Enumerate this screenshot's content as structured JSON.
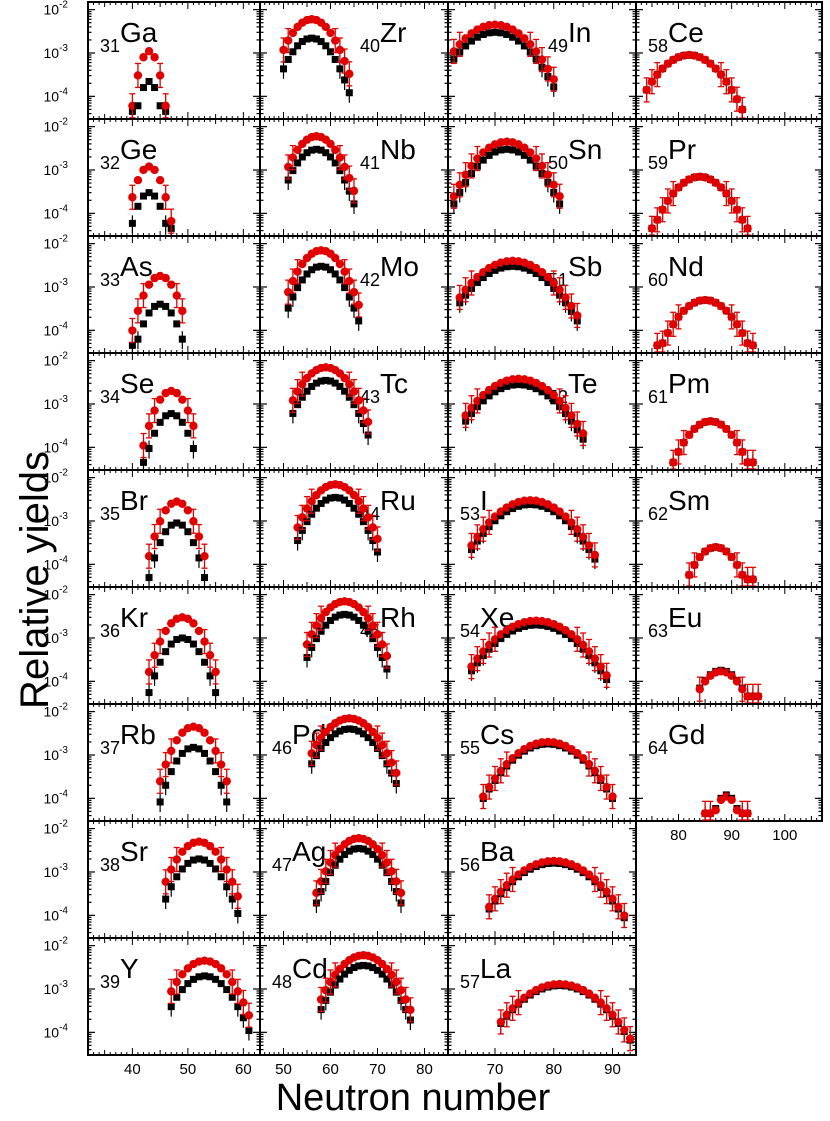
{
  "figure": {
    "xlabel": "Neutron number",
    "ylabel": "Relative yields",
    "y_ticks": [
      {
        "exp": -2,
        "base": "10",
        "power": "-2"
      },
      {
        "exp": -3,
        "base": "10",
        "power": "-3"
      },
      {
        "exp": -4,
        "base": "10",
        "power": "-4"
      }
    ]
  },
  "colors": {
    "series_a": "#000000",
    "series_b": "#e00000"
  },
  "chart_data": {
    "type": "scatter",
    "yscale": "log",
    "ylim": [
      3e-05,
      0.015
    ],
    "column_xlim": [
      [
        32,
        63
      ],
      [
        45,
        85
      ],
      [
        62,
        94
      ],
      [
        72,
        107
      ]
    ],
    "column_x_ticks": [
      [
        40,
        50,
        60
      ],
      [
        50,
        60,
        70,
        80
      ],
      [
        70,
        80,
        90
      ],
      [
        80,
        90,
        100
      ]
    ],
    "series": [
      {
        "name": "black squares"
      },
      {
        "name": "red circles with error bars"
      }
    ],
    "panels": [
      {
        "z": "31",
        "el": "Ga",
        "col": 0,
        "row": 0,
        "label_side": "left",
        "n_range": [
          40,
          46
        ],
        "peak_n": 43,
        "peak_a": 0.00022,
        "peak_b": 0.0011
      },
      {
        "z": "32",
        "el": "Ge",
        "col": 0,
        "row": 1,
        "label_side": "left",
        "n_range": [
          40,
          47
        ],
        "peak_n": 43,
        "peak_a": 0.0003,
        "peak_b": 0.0012
      },
      {
        "z": "33",
        "el": "As",
        "col": 0,
        "row": 2,
        "label_side": "left",
        "n_range": [
          40,
          49
        ],
        "peak_n": 45,
        "peak_a": 0.0004,
        "peak_b": 0.0018
      },
      {
        "z": "34",
        "el": "Se",
        "col": 0,
        "row": 3,
        "label_side": "left",
        "n_range": [
          42,
          51
        ],
        "peak_n": 47,
        "peak_a": 0.0006,
        "peak_b": 0.002
      },
      {
        "z": "35",
        "el": "Br",
        "col": 0,
        "row": 4,
        "label_side": "left",
        "n_range": [
          43,
          53
        ],
        "peak_n": 48,
        "peak_a": 0.0009,
        "peak_b": 0.0028
      },
      {
        "z": "36",
        "el": "Kr",
        "col": 0,
        "row": 5,
        "label_side": "left",
        "n_range": [
          43,
          55
        ],
        "peak_n": 49,
        "peak_a": 0.001,
        "peak_b": 0.003
      },
      {
        "z": "37",
        "el": "Rb",
        "col": 0,
        "row": 6,
        "label_side": "left",
        "n_range": [
          45,
          57
        ],
        "peak_n": 51,
        "peak_a": 0.0015,
        "peak_b": 0.0045
      },
      {
        "z": "38",
        "el": "Sr",
        "col": 0,
        "row": 7,
        "label_side": "left",
        "n_range": [
          46,
          59
        ],
        "peak_n": 52,
        "peak_a": 0.002,
        "peak_b": 0.005
      },
      {
        "z": "39",
        "el": "Y",
        "col": 0,
        "row": 8,
        "label_side": "left",
        "n_range": [
          47,
          61
        ],
        "peak_n": 53,
        "peak_a": 0.002,
        "peak_b": 0.0045
      },
      {
        "z": "40",
        "el": "Zr",
        "col": 1,
        "row": 0,
        "label_side": "right",
        "n_range": [
          50,
          64
        ],
        "peak_n": 56,
        "peak_a": 0.0022,
        "peak_b": 0.006
      },
      {
        "z": "41",
        "el": "Nb",
        "col": 1,
        "row": 1,
        "label_side": "right",
        "n_range": [
          51,
          65
        ],
        "peak_n": 57,
        "peak_a": 0.003,
        "peak_b": 0.006
      },
      {
        "z": "42",
        "el": "Mo",
        "col": 1,
        "row": 2,
        "label_side": "right",
        "n_range": [
          51,
          66
        ],
        "peak_n": 58,
        "peak_a": 0.003,
        "peak_b": 0.007
      },
      {
        "z": "43",
        "el": "Tc",
        "col": 1,
        "row": 3,
        "label_side": "right",
        "n_range": [
          52,
          68
        ],
        "peak_n": 59,
        "peak_a": 0.0035,
        "peak_b": 0.007
      },
      {
        "z": "44",
        "el": "Ru",
        "col": 1,
        "row": 4,
        "label_side": "right",
        "n_range": [
          53,
          70
        ],
        "peak_n": 61,
        "peak_a": 0.0035,
        "peak_b": 0.007
      },
      {
        "z": "45",
        "el": "Rh",
        "col": 1,
        "row": 5,
        "label_side": "right",
        "n_range": [
          55,
          72
        ],
        "peak_n": 63,
        "peak_a": 0.0035,
        "peak_b": 0.007
      },
      {
        "z": "46",
        "el": "Pd",
        "col": 1,
        "row": 6,
        "label_side": "left",
        "n_range": [
          56,
          74
        ],
        "peak_n": 64,
        "peak_a": 0.004,
        "peak_b": 0.007
      },
      {
        "z": "47",
        "el": "Ag",
        "col": 1,
        "row": 7,
        "label_side": "left",
        "n_range": [
          57,
          75
        ],
        "peak_n": 66,
        "peak_a": 0.0035,
        "peak_b": 0.006
      },
      {
        "z": "48",
        "el": "Cd",
        "col": 1,
        "row": 8,
        "label_side": "left",
        "n_range": [
          58,
          77
        ],
        "peak_n": 67,
        "peak_a": 0.0035,
        "peak_b": 0.006
      },
      {
        "z": "49",
        "el": "In",
        "col": 2,
        "row": 0,
        "label_side": "right",
        "n_range": [
          63,
          80
        ],
        "peak_n": 70,
        "peak_a": 0.003,
        "peak_b": 0.0045
      },
      {
        "z": "50",
        "el": "Sn",
        "col": 2,
        "row": 1,
        "label_side": "right",
        "n_range": [
          63,
          81
        ],
        "peak_n": 72,
        "peak_a": 0.003,
        "peak_b": 0.0045
      },
      {
        "z": "51",
        "el": "Sb",
        "col": 2,
        "row": 2,
        "label_side": "right",
        "n_range": [
          64,
          84
        ],
        "peak_n": 73,
        "peak_a": 0.003,
        "peak_b": 0.004
      },
      {
        "z": "52",
        "el": "Te",
        "col": 2,
        "row": 3,
        "label_side": "right",
        "n_range": [
          65,
          85
        ],
        "peak_n": 74,
        "peak_a": 0.0028,
        "peak_b": 0.0038
      },
      {
        "z": "53",
        "el": "I",
        "col": 2,
        "row": 4,
        "label_side": "left",
        "n_range": [
          66,
          87
        ],
        "peak_n": 76,
        "peak_a": 0.0024,
        "peak_b": 0.003
      },
      {
        "z": "54",
        "el": "Xe",
        "col": 2,
        "row": 5,
        "label_side": "left",
        "n_range": [
          66,
          89
        ],
        "peak_n": 77,
        "peak_a": 0.002,
        "peak_b": 0.0025
      },
      {
        "z": "55",
        "el": "Cs",
        "col": 2,
        "row": 6,
        "label_side": "left",
        "n_range": [
          68,
          90
        ],
        "peak_n": 79,
        "peak_a": 0.0018,
        "peak_b": 0.002
      },
      {
        "z": "56",
        "el": "Ba",
        "col": 2,
        "row": 7,
        "label_side": "left",
        "n_range": [
          69,
          92
        ],
        "peak_n": 80,
        "peak_a": 0.0016,
        "peak_b": 0.0018
      },
      {
        "z": "57",
        "el": "La",
        "col": 2,
        "row": 8,
        "label_side": "left",
        "n_range": [
          71,
          93
        ],
        "peak_n": 81,
        "peak_a": 0.0012,
        "peak_b": 0.0013
      },
      {
        "z": "58",
        "el": "Ce",
        "col": 3,
        "row": 0,
        "label_side": "left",
        "n_range": [
          74,
          92
        ],
        "peak_n": 82,
        "peak_a": 0.0009,
        "peak_b": 0.0009
      },
      {
        "z": "59",
        "el": "Pr",
        "col": 3,
        "row": 1,
        "label_side": "left",
        "n_range": [
          75,
          93
        ],
        "peak_n": 84,
        "peak_a": 0.0007,
        "peak_b": 0.0007
      },
      {
        "z": "60",
        "el": "Nd",
        "col": 3,
        "row": 2,
        "label_side": "left",
        "n_range": [
          76,
          94
        ],
        "peak_n": 85,
        "peak_a": 0.0005,
        "peak_b": 0.0005
      },
      {
        "z": "61",
        "el": "Pm",
        "col": 3,
        "row": 3,
        "label_side": "left",
        "n_range": [
          79,
          94
        ],
        "peak_n": 86,
        "peak_a": 0.0004,
        "peak_b": 0.0004
      },
      {
        "z": "62",
        "el": "Sm",
        "col": 3,
        "row": 4,
        "label_side": "left",
        "n_range": [
          82,
          94
        ],
        "peak_n": 87,
        "peak_a": 0.00025,
        "peak_b": 0.00025
      },
      {
        "z": "63",
        "el": "Eu",
        "col": 3,
        "row": 5,
        "label_side": "left",
        "n_range": [
          84,
          95
        ],
        "peak_n": 88,
        "peak_a": 0.00018,
        "peak_b": 0.00017
      },
      {
        "z": "64",
        "el": "Gd",
        "col": 3,
        "row": 6,
        "label_side": "left",
        "n_range": [
          85,
          93
        ],
        "peak_n": 89,
        "peak_a": 0.00012,
        "peak_b": 0.00011
      }
    ]
  }
}
